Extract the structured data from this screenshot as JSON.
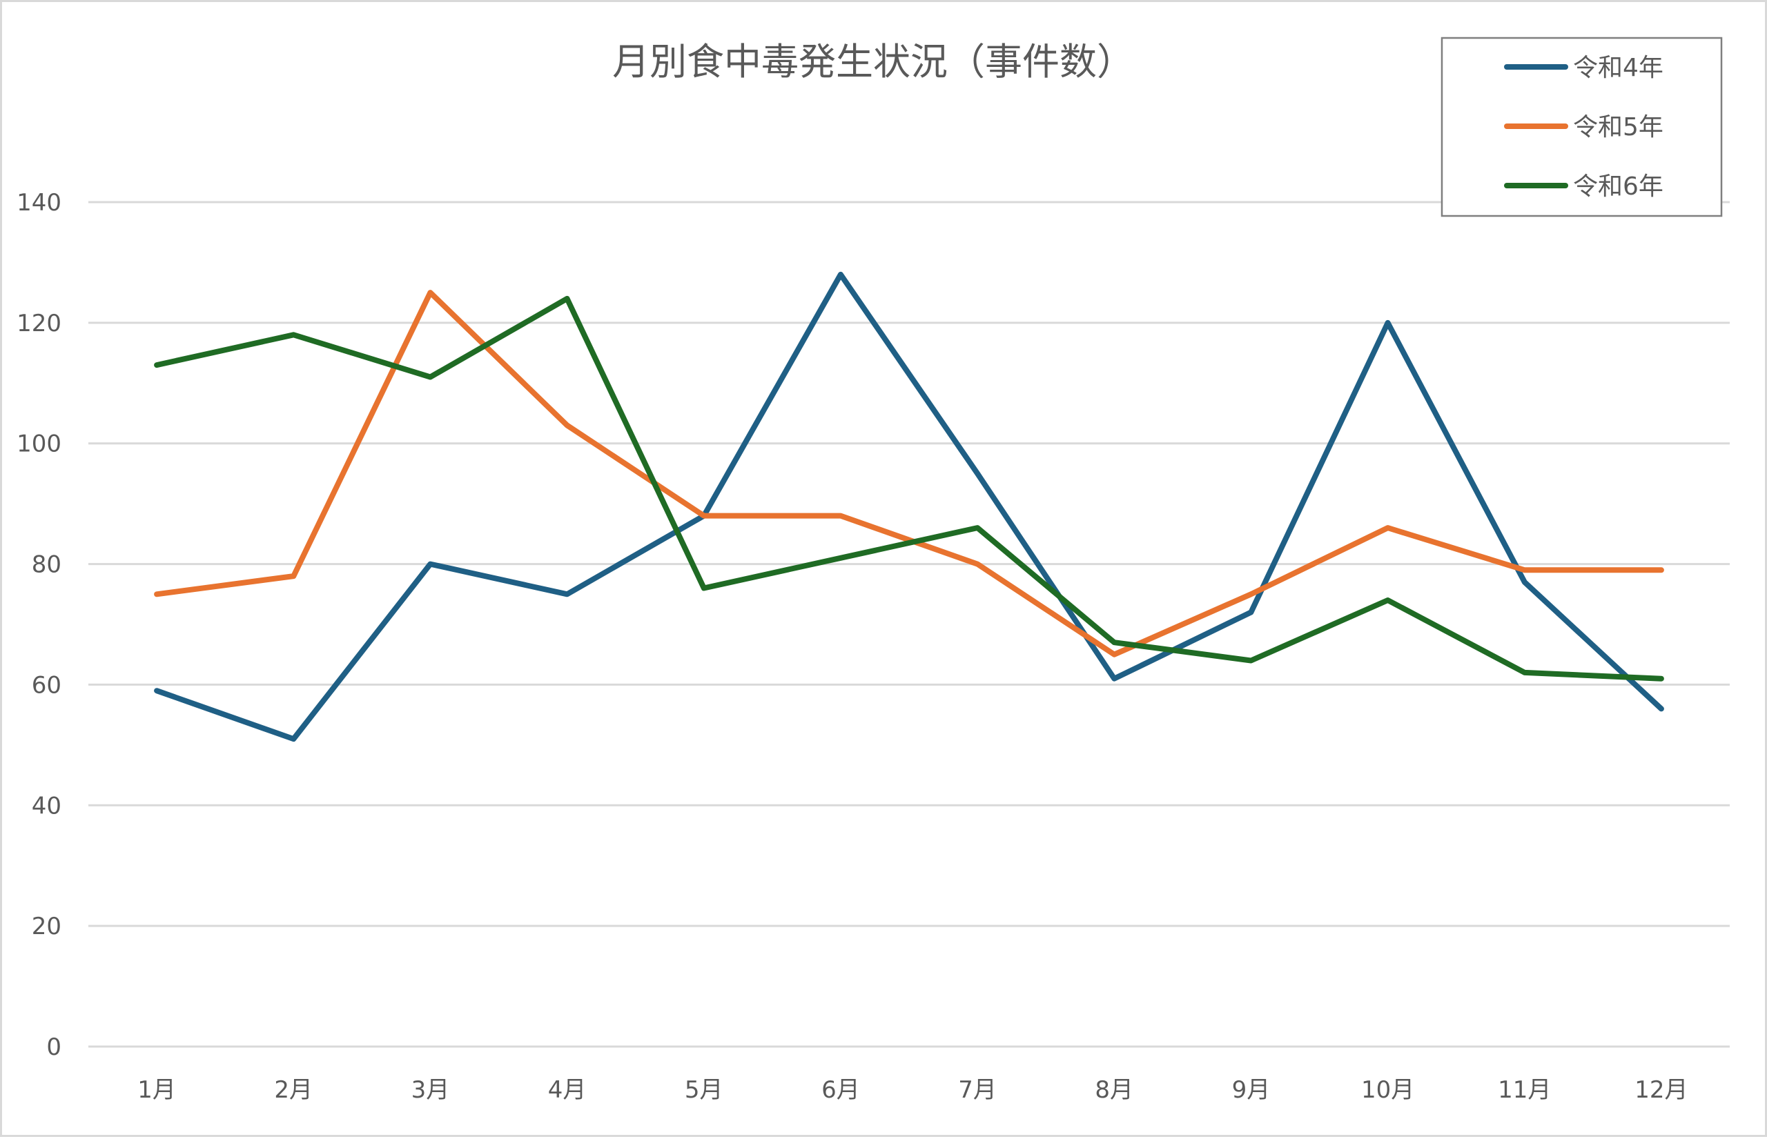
{
  "chart_data": {
    "type": "line",
    "title": "月別食中毒発生状況（事件数）",
    "xlabel": "",
    "ylabel": "",
    "ylim": [
      0,
      140
    ],
    "yticks": [
      0,
      20,
      40,
      60,
      80,
      100,
      120,
      140
    ],
    "grid": true,
    "legend_position": "top-right",
    "categories": [
      "1月",
      "2月",
      "3月",
      "4月",
      "5月",
      "6月",
      "7月",
      "8月",
      "9月",
      "10月",
      "11月",
      "12月"
    ],
    "series": [
      {
        "name": "令和4年",
        "color": "#1f5f85",
        "values": [
          59,
          51,
          80,
          75,
          88,
          128,
          95,
          61,
          72,
          120,
          77,
          56
        ]
      },
      {
        "name": "令和5年",
        "color": "#e8732f",
        "values": [
          75,
          78,
          125,
          103,
          88,
          88,
          80,
          65,
          75,
          86,
          79,
          79
        ]
      },
      {
        "name": "令和6年",
        "color": "#1f6b24",
        "values": [
          113,
          118,
          111,
          124,
          76,
          81,
          86,
          67,
          64,
          74,
          62,
          61
        ]
      }
    ]
  }
}
